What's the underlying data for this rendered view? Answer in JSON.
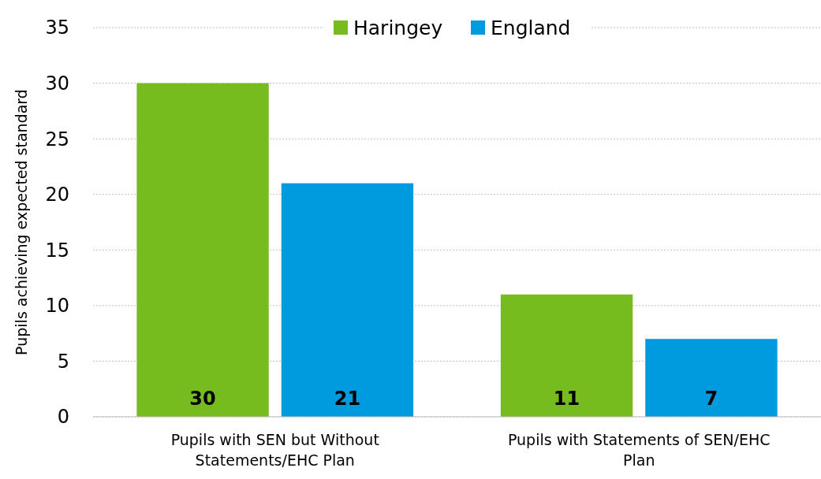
{
  "chart_data": {
    "type": "bar",
    "ylabel": "Pupils achieving expected standard",
    "categories": [
      "Pupils with SEN but Without Statements/EHC Plan",
      "Pupils with Statements of SEN/EHC Plan"
    ],
    "series": [
      {
        "name": "Haringey",
        "color": "#77bc1f",
        "values": [
          30,
          11
        ]
      },
      {
        "name": "England",
        "color": "#009ade",
        "values": [
          21,
          7
        ]
      }
    ],
    "ylim": [
      0,
      35
    ],
    "yticks": [
      0,
      5,
      10,
      15,
      20,
      25,
      30,
      35
    ],
    "grid": "y",
    "legend": "top",
    "data_labels": true
  }
}
